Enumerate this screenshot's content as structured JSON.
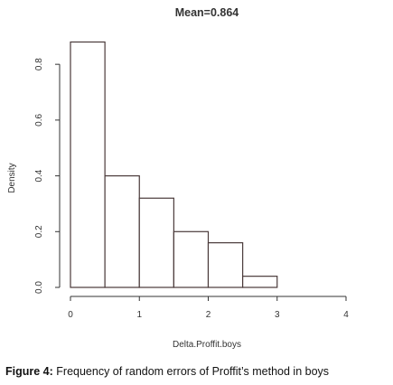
{
  "chart_data": {
    "type": "histogram",
    "title": "Mean=0.864",
    "xlabel": "Delta.Proffit.boys",
    "ylabel": "Density",
    "bins": [
      {
        "start": 0.0,
        "end": 0.5,
        "density": 0.88
      },
      {
        "start": 0.5,
        "end": 1.0,
        "density": 0.4
      },
      {
        "start": 1.0,
        "end": 1.5,
        "density": 0.32
      },
      {
        "start": 1.5,
        "end": 2.0,
        "density": 0.2
      },
      {
        "start": 2.0,
        "end": 2.5,
        "density": 0.16
      },
      {
        "start": 2.5,
        "end": 3.0,
        "density": 0.04
      },
      {
        "start": 3.0,
        "end": 3.5,
        "density": 0.0
      },
      {
        "start": 3.5,
        "end": 4.0,
        "density": 0.0
      }
    ],
    "xlim": [
      0,
      4
    ],
    "ylim": [
      0,
      0.9
    ],
    "x_ticks": [
      0,
      1,
      2,
      3,
      4
    ],
    "x_tick_labels": [
      "0",
      "1",
      "2",
      "3",
      "4"
    ],
    "y_ticks": [
      0.0,
      0.2,
      0.4,
      0.6,
      0.8
    ],
    "y_tick_labels": [
      "0.0",
      "0.2",
      "0.4",
      "0.6",
      "0.8"
    ],
    "grid": false,
    "colors": {
      "bar_fill": "#ffffff",
      "bar_stroke": "#4a3a3a",
      "axis": "#333333"
    }
  },
  "caption": {
    "label": "Figure 4:",
    "text": " Frequency of random errors of Proffit’s method in boys"
  }
}
